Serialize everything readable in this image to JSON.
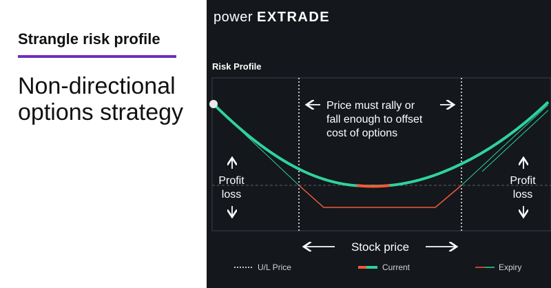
{
  "left_panel": {
    "title": "Strangle risk profile",
    "subtitle": "Non-directional options strategy"
  },
  "right_panel": {
    "logo_prefix": "power",
    "logo_brand": "E*TRADE",
    "logo_display_brand": "EXTRADE",
    "section_label": "Risk Profile",
    "annotation_lines": [
      "Price must rally or",
      "fall enough to offset",
      "cost of options"
    ],
    "profit_loss_left": [
      "Profit",
      "loss"
    ],
    "profit_loss_right": [
      "Profit",
      "loss"
    ],
    "stock_price_label": "Stock price",
    "legend": {
      "ul_price": "U/L Price",
      "current": "Current",
      "expiry": "Expiry"
    },
    "colors": {
      "current_line": "#2fd39b",
      "current_accent": "#f05a37",
      "expiry_loss": "#f05a37",
      "expiry_profit": "#2fd39b",
      "accent_underline": "#6f2dbd",
      "panel_bg": "#14171c"
    }
  },
  "chart_data": {
    "type": "line",
    "title": "Risk Profile",
    "xlabel": "Stock price",
    "ylabel": "Profit loss",
    "series": [
      {
        "name": "Current",
        "shape": "smooth U-shaped curve, minimum near break-even line between strikes"
      },
      {
        "name": "Expiry",
        "shape": "flat loss between strikes, rising linearly beyond each strike"
      }
    ],
    "reference_lines": [
      "U/L Price"
    ]
  }
}
